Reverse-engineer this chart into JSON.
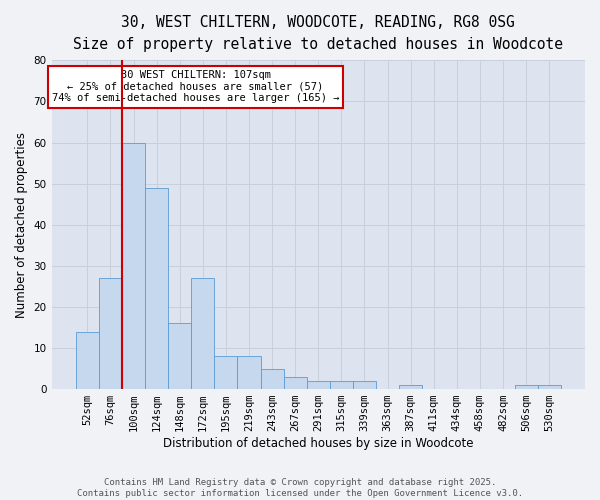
{
  "title": "30, WEST CHILTERN, WOODCOTE, READING, RG8 0SG",
  "subtitle": "Size of property relative to detached houses in Woodcote",
  "xlabel": "Distribution of detached houses by size in Woodcote",
  "ylabel": "Number of detached properties",
  "categories": [
    "52sqm",
    "76sqm",
    "100sqm",
    "124sqm",
    "148sqm",
    "172sqm",
    "195sqm",
    "219sqm",
    "243sqm",
    "267sqm",
    "291sqm",
    "315sqm",
    "339sqm",
    "363sqm",
    "387sqm",
    "411sqm",
    "434sqm",
    "458sqm",
    "482sqm",
    "506sqm",
    "530sqm"
  ],
  "values": [
    14,
    27,
    60,
    49,
    16,
    27,
    8,
    8,
    5,
    3,
    2,
    2,
    2,
    0,
    1,
    0,
    0,
    0,
    0,
    1,
    1
  ],
  "bar_color": "#c5d8ed",
  "bar_edge_color": "#5b9bd5",
  "property_line_color": "#cc0000",
  "annotation_text_line1": "30 WEST CHILTERN: 107sqm",
  "annotation_text_line2": "← 25% of detached houses are smaller (57)",
  "annotation_text_line3": "74% of semi-detached houses are larger (165) →",
  "annotation_box_facecolor": "#ffffff",
  "annotation_box_edgecolor": "#cc0000",
  "ylim": [
    0,
    80
  ],
  "yticks": [
    0,
    10,
    20,
    30,
    40,
    50,
    60,
    70,
    80
  ],
  "grid_color": "#c8d0dc",
  "plot_bg_color": "#dde4ef",
  "fig_bg_color": "#f0f2f5",
  "title_fontsize": 10.5,
  "subtitle_fontsize": 9.5,
  "axis_label_fontsize": 8.5,
  "tick_fontsize": 7.5,
  "annotation_fontsize": 7.5,
  "footnote_fontsize": 6.5,
  "footnote": "Contains HM Land Registry data © Crown copyright and database right 2025.\nContains public sector information licensed under the Open Government Licence v3.0."
}
